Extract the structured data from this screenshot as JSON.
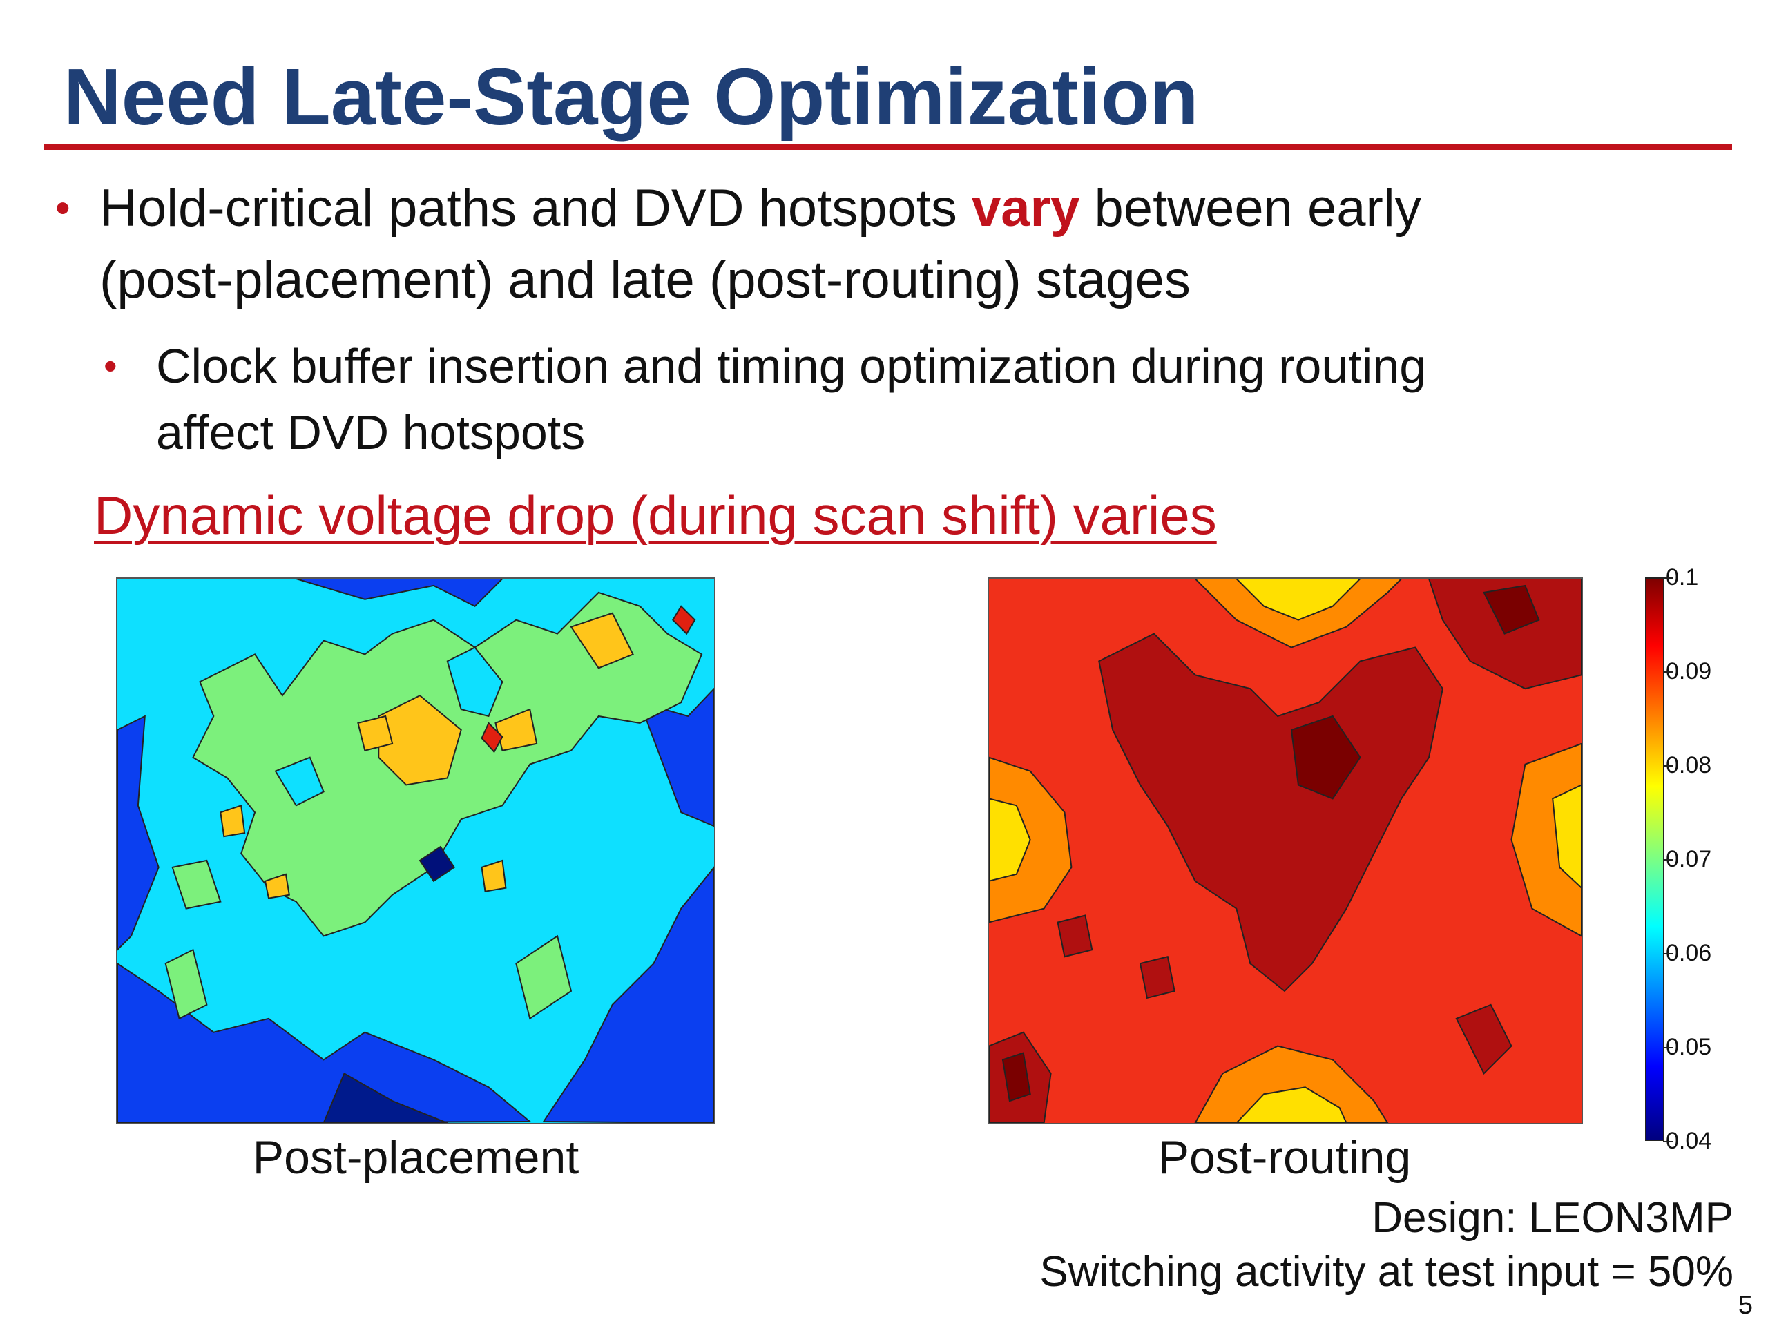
{
  "slide": {
    "title": "Need Late-Stage Optimization",
    "bullet1": {
      "before": "Hold-critical paths and DVD hotspots ",
      "emphasis": "vary",
      "after_line1": " between early",
      "line2": "(post-placement) and late (post-routing) stages"
    },
    "bullet2": {
      "line1": "Clock buffer insertion and timing optimization during routing",
      "line2": "affect DVD hotspots"
    },
    "heading": "Dynamic voltage drop (during scan shift) varies",
    "left_caption": "Post-placement",
    "right_caption": "Post-routing",
    "design_note": "Design: LEON3MP",
    "switching_note": "Switching activity at test input = 50%",
    "page_number": "5",
    "colors": {
      "title": "#1f3f75",
      "accent": "#c0121c"
    }
  },
  "colorbar": {
    "ticks": [
      "0.1",
      "0.09",
      "0.08",
      "0.07",
      "0.06",
      "0.05",
      "0.04"
    ],
    "range": [
      0.04,
      0.1
    ],
    "colormap": "jet"
  }
}
